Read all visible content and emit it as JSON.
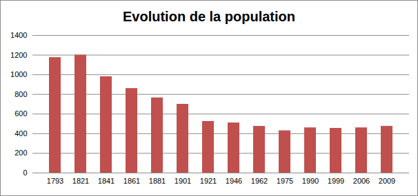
{
  "chart_data": {
    "type": "bar",
    "title": "Evolution de la population",
    "categories": [
      "1793",
      "1821",
      "1841",
      "1861",
      "1881",
      "1901",
      "1921",
      "1946",
      "1962",
      "1975",
      "1990",
      "1999",
      "2006",
      "2009"
    ],
    "values": [
      1175,
      1200,
      980,
      860,
      765,
      700,
      525,
      510,
      475,
      430,
      460,
      455,
      460,
      475
    ],
    "color": "#c0504d",
    "ylim": [
      0,
      1400
    ],
    "yticks": [
      0,
      200,
      400,
      600,
      800,
      1000,
      1200,
      1400
    ],
    "grid": true
  }
}
